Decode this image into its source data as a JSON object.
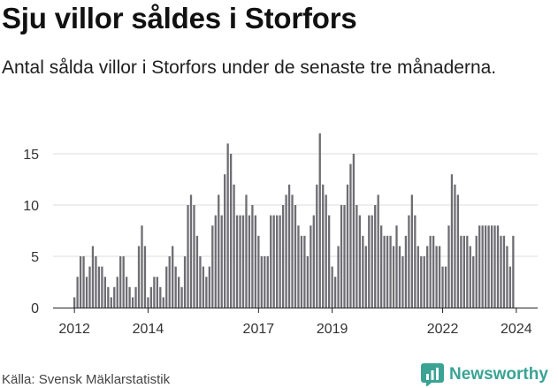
{
  "header": {
    "title": "Sju villor såldes i Storfors",
    "subtitle": "Antal sålda villor i Storfors under de senaste tre månaderna."
  },
  "footer": {
    "source": "Källa: Svensk Mäklarstatistik",
    "brand": "Newsworthy"
  },
  "colors": {
    "bar": "#6e6d72",
    "highlight": "#2e9c8f",
    "brand": "#3aa394"
  },
  "chart_data": {
    "type": "bar",
    "title": "Sju villor såldes i Storfors",
    "xlabel": "",
    "ylabel": "",
    "ylim": [
      0,
      17
    ],
    "y_ticks": [
      0,
      5,
      10,
      15
    ],
    "x_ticks": [
      {
        "label": "2012",
        "index": 0
      },
      {
        "label": "2014",
        "index": 24
      },
      {
        "label": "2017",
        "index": 60
      },
      {
        "label": "2019",
        "index": 84
      },
      {
        "label": "2022",
        "index": 120
      },
      {
        "label": "2024",
        "index": 144
      }
    ],
    "categories_note": "Monthly rolling 3-month counts, Jan 2012 – Jan 2024",
    "values": [
      1,
      3,
      5,
      5,
      3,
      4,
      6,
      5,
      4,
      4,
      3,
      2,
      1,
      2,
      3,
      5,
      5,
      3,
      2,
      1,
      2,
      6,
      8,
      6,
      1,
      2,
      3,
      3,
      2,
      1,
      4,
      5,
      6,
      4,
      3,
      2,
      5,
      10,
      11,
      10,
      7,
      5,
      4,
      3,
      4,
      8,
      9,
      11,
      9,
      13,
      16,
      15,
      12,
      9,
      9,
      9,
      11,
      9,
      10,
      9,
      7,
      5,
      5,
      5,
      9,
      9,
      9,
      9,
      10,
      11,
      12,
      11,
      10,
      8,
      7,
      7,
      5,
      8,
      9,
      12,
      17,
      12,
      11,
      9,
      4,
      3,
      6,
      10,
      10,
      12,
      14,
      15,
      10,
      9,
      7,
      6,
      9,
      9,
      10,
      11,
      8,
      7,
      7,
      7,
      6,
      8,
      6,
      5,
      7,
      9,
      11,
      9,
      6,
      5,
      5,
      6,
      7,
      7,
      6,
      6,
      4,
      4,
      8,
      13,
      12,
      11,
      7,
      7,
      7,
      6,
      5,
      7,
      8,
      8,
      8,
      8,
      8,
      8,
      8,
      7,
      7,
      6,
      4,
      7
    ],
    "highlight_label": "7",
    "highlight_index": 144
  }
}
